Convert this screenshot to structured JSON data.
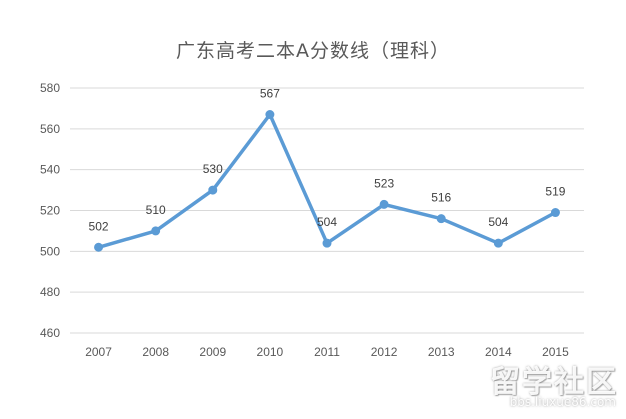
{
  "chart_data": {
    "type": "line",
    "title": "广东高考二本A分数线（理科）",
    "categories": [
      "2007",
      "2008",
      "2009",
      "2010",
      "2011",
      "2012",
      "2013",
      "2014",
      "2015"
    ],
    "values": [
      502,
      510,
      530,
      567,
      504,
      523,
      516,
      504,
      519
    ],
    "y_ticks": [
      "460",
      "480",
      "500",
      "520",
      "540",
      "560",
      "580"
    ],
    "ylim": [
      460,
      580
    ],
    "xlabel": "",
    "ylabel": "",
    "grid": true,
    "legend": "none",
    "data_labels": true,
    "color": "#5b9bd5"
  },
  "watermark": {
    "main": "留学社区",
    "sub": "bbs.liuxue86.com"
  }
}
